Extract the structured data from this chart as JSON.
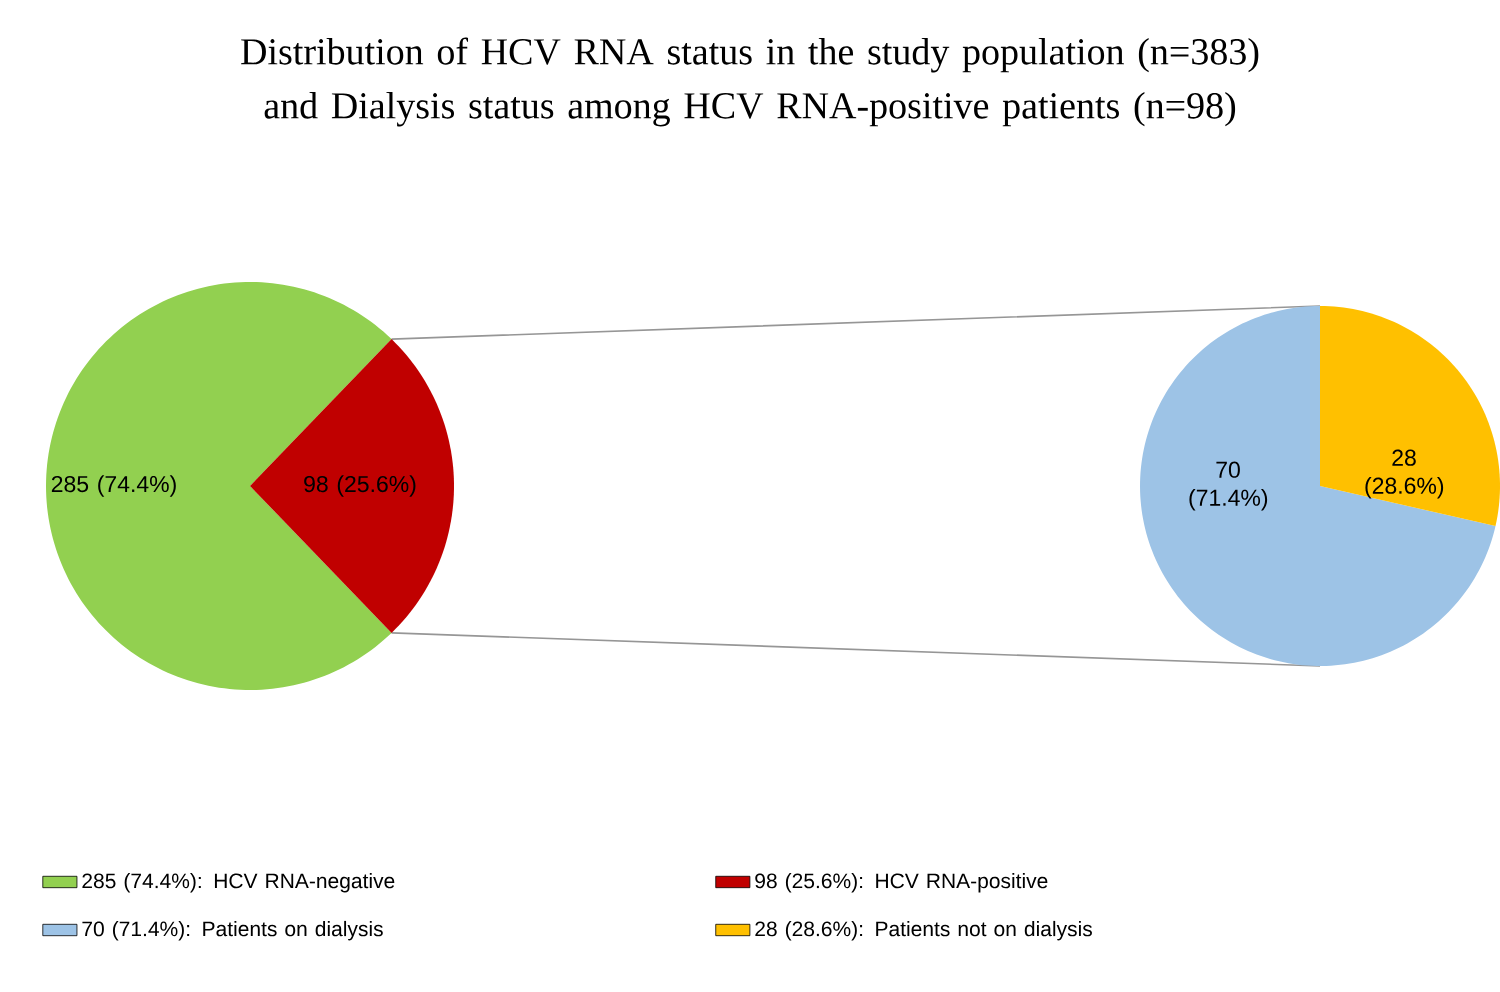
{
  "chart_data": [
    {
      "type": "pie",
      "title": "Distribution of HCV RNA status in the study population (n=383) and Dialysis status among HCV RNA-positive patients (n=98)",
      "categories": [
        "285 (74.4%): HCV RNA-negative",
        "98 (25.6%): HCV RNA-positive"
      ],
      "values": [
        285,
        98
      ],
      "colors": [
        "#92d050",
        "#c00000"
      ],
      "value_labels": [
        "285 (74.4%)",
        "98 (25.6%)"
      ],
      "legend": "bottom"
    },
    {
      "type": "pie",
      "categories": [
        "70 (71.4%): Patients on dialysis",
        "28 (28.6%): Patients not on dialysis"
      ],
      "values": [
        70,
        28
      ],
      "colors": [
        "#9dc3e6",
        "#ffc000"
      ],
      "value_labels": [
        "70 (71.4%)",
        "28 (28.6%)"
      ],
      "legend": "bottom"
    }
  ]
}
